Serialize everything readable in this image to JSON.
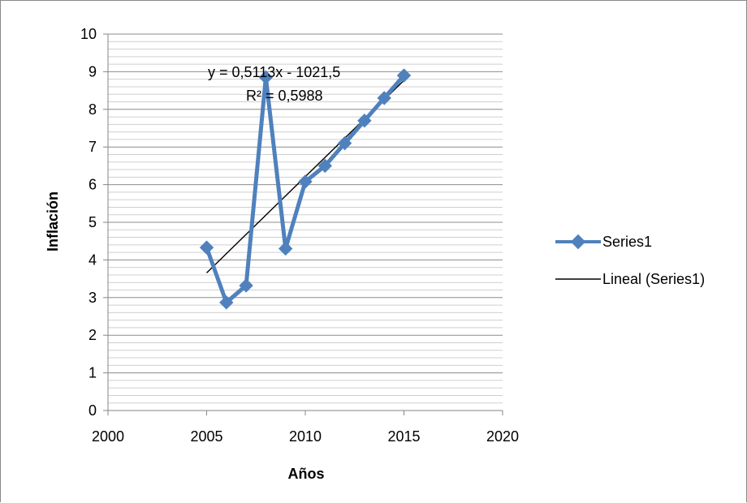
{
  "chart_data": {
    "type": "scatter",
    "title": "",
    "xlabel": "Años",
    "ylabel": "Inflación",
    "xlim": [
      2000,
      2020
    ],
    "ylim": [
      0,
      10
    ],
    "xticks": [
      2000,
      2005,
      2010,
      2015,
      2020
    ],
    "yticks": [
      0,
      1,
      2,
      3,
      4,
      5,
      6,
      7,
      8,
      9,
      10
    ],
    "grid": "horizontal major and minor",
    "legend_position": "right",
    "series": [
      {
        "name": "Series1",
        "color": "#4f81bd",
        "marker": "diamond",
        "x": [
          2005,
          2006,
          2007,
          2008,
          2009,
          2010,
          2011,
          2012,
          2013,
          2014,
          2015
        ],
        "y": [
          4.33,
          2.87,
          3.32,
          8.85,
          4.3,
          6.08,
          6.5,
          7.1,
          7.7,
          8.3,
          8.9
        ]
      }
    ],
    "trendline": {
      "name": "Lineal (Series1)",
      "type": "linear",
      "color": "#000000",
      "equation": "y = 0,5113x - 1021,5",
      "r_squared": "R² = 0,5988",
      "x_range": [
        2005,
        2015
      ],
      "slope": 0.5113,
      "intercept": -1021.5
    }
  }
}
